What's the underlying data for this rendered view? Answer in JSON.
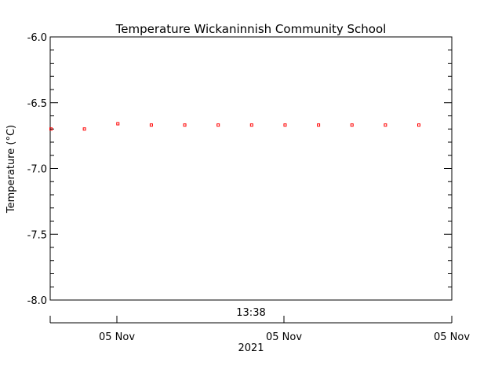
{
  "chart_data": {
    "type": "scatter",
    "title": "Temperature Wickaninnish Community School",
    "ylabel": "Temperature (°C)",
    "ylim": [
      -8.0,
      -6.0
    ],
    "y_ticks": [
      "-6.0",
      "-6.5",
      "-7.0",
      "-7.5",
      "-8.0"
    ],
    "y_tick_values": [
      -6.0,
      -6.5,
      -7.0,
      -7.5,
      -8.0
    ],
    "top_axis_label": "13:38",
    "x_tick_labels": [
      "05 Nov",
      "05 Nov",
      "05 Nov"
    ],
    "x_axis_year": "2021",
    "series": [
      {
        "color": "#ff0000",
        "marker": "small-square",
        "values": [
          -6.7,
          -6.7,
          -6.66,
          -6.67,
          -6.67,
          -6.67,
          -6.67,
          -6.67,
          -6.67,
          -6.67,
          -6.67,
          -6.67
        ]
      }
    ],
    "grid": false
  }
}
